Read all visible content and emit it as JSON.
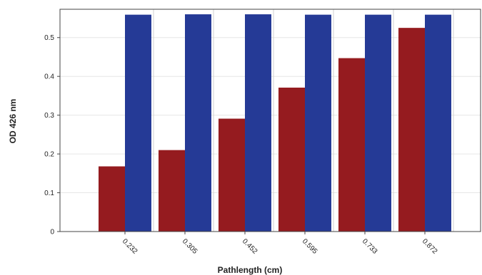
{
  "chart_data": {
    "type": "bar",
    "categories": [
      "0.232",
      "0.305",
      "0.452",
      "0.595",
      "0.733",
      "0.872"
    ],
    "series": [
      {
        "values": [
          0.168,
          0.21,
          0.291,
          0.371,
          0.447,
          0.525
        ],
        "color": "#951b1f"
      },
      {
        "values": [
          0.559,
          0.56,
          0.56,
          0.559,
          0.559,
          0.559
        ],
        "color": "#253a96"
      }
    ],
    "xlabel": "Pathlength (cm)",
    "ylabel": "OD 426 nm",
    "ylim": [
      0,
      0.573
    ],
    "yticks": [
      "0",
      "0.1",
      "0.2",
      "0.3",
      "0.4",
      "0.5"
    ],
    "grid": true,
    "legend": "none"
  }
}
